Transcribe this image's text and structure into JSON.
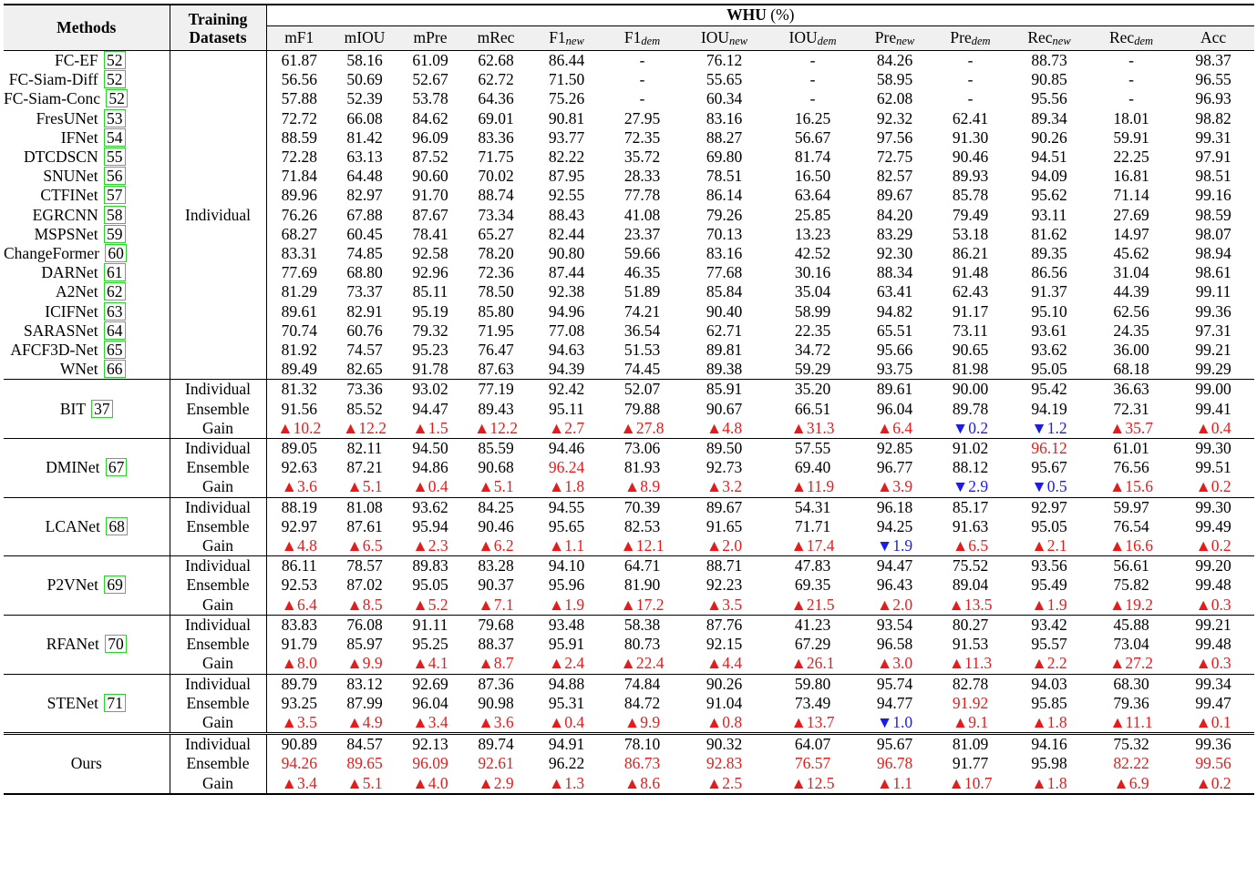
{
  "header": {
    "methods_label": "Methods",
    "training_label": "Training Datasets",
    "dataset_label": "WHU (%)",
    "columns": [
      {
        "base": "mF1",
        "sub": ""
      },
      {
        "base": "mIOU",
        "sub": ""
      },
      {
        "base": "mPre",
        "sub": ""
      },
      {
        "base": "mRec",
        "sub": ""
      },
      {
        "base": "F1",
        "sub": "new"
      },
      {
        "base": "F1",
        "sub": "dem"
      },
      {
        "base": "IOU",
        "sub": "new"
      },
      {
        "base": "IOU",
        "sub": "dem"
      },
      {
        "base": "Pre",
        "sub": "new"
      },
      {
        "base": "Pre",
        "sub": "dem"
      },
      {
        "base": "Rec",
        "sub": "new"
      },
      {
        "base": "Rec",
        "sub": "dem"
      },
      {
        "base": "Acc",
        "sub": ""
      }
    ]
  },
  "individual_section": {
    "dataset_label": "Individual",
    "rows": [
      {
        "method": "FC-EF",
        "ref": "52",
        "values": [
          "61.87",
          "58.16",
          "61.09",
          "62.68",
          "86.44",
          "-",
          "76.12",
          "-",
          "84.26",
          "-",
          "88.73",
          "-",
          "98.37"
        ]
      },
      {
        "method": "FC-Siam-Diff",
        "ref": "52",
        "values": [
          "56.56",
          "50.69",
          "52.67",
          "62.72",
          "71.50",
          "-",
          "55.65",
          "-",
          "58.95",
          "-",
          "90.85",
          "-",
          "96.55"
        ]
      },
      {
        "method": "FC-Siam-Conc",
        "ref": "52",
        "values": [
          "57.88",
          "52.39",
          "53.78",
          "64.36",
          "75.26",
          "-",
          "60.34",
          "-",
          "62.08",
          "-",
          "95.56",
          "-",
          "96.93"
        ]
      },
      {
        "method": "FresUNet",
        "ref": "53",
        "values": [
          "72.72",
          "66.08",
          "84.62",
          "69.01",
          "90.81",
          "27.95",
          "83.16",
          "16.25",
          "92.32",
          "62.41",
          "89.34",
          "18.01",
          "98.82"
        ]
      },
      {
        "method": "IFNet",
        "ref": "54",
        "values": [
          "88.59",
          "81.42",
          "96.09",
          "83.36",
          "93.77",
          "72.35",
          "88.27",
          "56.67",
          "97.56",
          "91.30",
          "90.26",
          "59.91",
          "99.31"
        ]
      },
      {
        "method": "DTCDSCN",
        "ref": "55",
        "values": [
          "72.28",
          "63.13",
          "87.52",
          "71.75",
          "82.22",
          "35.72",
          "69.80",
          "81.74",
          "72.75",
          "90.46",
          "94.51",
          "22.25",
          "97.91"
        ]
      },
      {
        "method": "SNUNet",
        "ref": "56",
        "values": [
          "71.84",
          "64.48",
          "90.60",
          "70.02",
          "87.95",
          "28.33",
          "78.51",
          "16.50",
          "82.57",
          "89.93",
          "94.09",
          "16.81",
          "98.51"
        ]
      },
      {
        "method": "CTFINet",
        "ref": "57",
        "values": [
          "89.96",
          "82.97",
          "91.70",
          "88.74",
          "92.55",
          "77.78",
          "86.14",
          "63.64",
          "89.67",
          "85.78",
          "95.62",
          "71.14",
          "99.16"
        ]
      },
      {
        "method": "EGRCNN",
        "ref": "58",
        "values": [
          "76.26",
          "67.88",
          "87.67",
          "73.34",
          "88.43",
          "41.08",
          "79.26",
          "25.85",
          "84.20",
          "79.49",
          "93.11",
          "27.69",
          "98.59"
        ]
      },
      {
        "method": "MSPSNet",
        "ref": "59",
        "values": [
          "68.27",
          "60.45",
          "78.41",
          "65.27",
          "82.44",
          "23.37",
          "70.13",
          "13.23",
          "83.29",
          "53.18",
          "81.62",
          "14.97",
          "98.07"
        ]
      },
      {
        "method": "ChangeFormer",
        "ref": "60",
        "values": [
          "83.31",
          "74.85",
          "92.58",
          "78.20",
          "90.80",
          "59.66",
          "83.16",
          "42.52",
          "92.30",
          "86.21",
          "89.35",
          "45.62",
          "98.94"
        ]
      },
      {
        "method": "DARNet",
        "ref": "61",
        "values": [
          "77.69",
          "68.80",
          "92.96",
          "72.36",
          "87.44",
          "46.35",
          "77.68",
          "30.16",
          "88.34",
          "91.48",
          "86.56",
          "31.04",
          "98.61"
        ]
      },
      {
        "method": "A2Net",
        "ref": "62",
        "values": [
          "81.29",
          "73.37",
          "85.11",
          "78.50",
          "92.38",
          "51.89",
          "85.84",
          "35.04",
          "63.41",
          "62.43",
          "91.37",
          "44.39",
          "99.11"
        ]
      },
      {
        "method": "ICIFNet",
        "ref": "63",
        "values": [
          "89.61",
          "82.91",
          "95.19",
          "85.80",
          "94.96",
          "74.21",
          "90.40",
          "58.99",
          "94.82",
          "91.17",
          "95.10",
          "62.56",
          "99.36"
        ]
      },
      {
        "method": "SARASNet",
        "ref": "64",
        "values": [
          "70.74",
          "60.76",
          "79.32",
          "71.95",
          "77.08",
          "36.54",
          "62.71",
          "22.35",
          "65.51",
          "73.11",
          "93.61",
          "24.35",
          "97.31"
        ]
      },
      {
        "method": "AFCF3D-Net",
        "ref": "65",
        "values": [
          "81.92",
          "74.57",
          "95.23",
          "76.47",
          "94.63",
          "51.53",
          "89.81",
          "34.72",
          "95.66",
          "90.65",
          "93.62",
          "36.00",
          "99.21"
        ]
      },
      {
        "method": "WNet",
        "ref": "66",
        "values": [
          "89.49",
          "82.65",
          "91.78",
          "87.63",
          "94.39",
          "74.45",
          "89.38",
          "59.29",
          "93.75",
          "81.98",
          "95.05",
          "68.18",
          "99.29"
        ]
      }
    ]
  },
  "groups": [
    {
      "method": "BIT",
      "ref": "37",
      "individual": [
        "81.32",
        "73.36",
        "93.02",
        "77.19",
        "92.42",
        "52.07",
        "85.91",
        "35.20",
        "89.61",
        "90.00",
        "95.42",
        "36.63",
        "99.00"
      ],
      "ensemble": [
        "91.56",
        "85.52",
        "94.47",
        "89.43",
        "95.11",
        "79.88",
        "90.67",
        "66.51",
        "96.04",
        "89.78",
        "94.19",
        "72.31",
        "99.41"
      ],
      "gain": [
        "▲10.2",
        "▲12.2",
        "▲1.5",
        "▲12.2",
        "▲2.7",
        "▲27.8",
        "▲4.8",
        "▲31.3",
        "▲6.4",
        "▼0.2",
        "▼1.2",
        "▲35.7",
        "▲0.4"
      ]
    },
    {
      "method": "DMINet",
      "ref": "67",
      "individual": [
        "89.05",
        "82.11",
        "94.50",
        "85.59",
        "94.46",
        "73.06",
        "89.50",
        "57.55",
        "92.85",
        "91.02",
        "96.12",
        "61.01",
        "99.30"
      ],
      "ensemble": [
        "92.63",
        "87.21",
        "94.86",
        "90.68",
        "96.24",
        "81.93",
        "92.73",
        "69.40",
        "96.77",
        "88.12",
        "95.67",
        "76.56",
        "99.51"
      ],
      "gain": [
        "▲3.6",
        "▲5.1",
        "▲0.4",
        "▲5.1",
        "▲1.8",
        "▲8.9",
        "▲3.2",
        "▲11.9",
        "▲3.9",
        "▼2.9",
        "▼0.5",
        "▲15.6",
        "▲0.2"
      ]
    },
    {
      "method": "LCANet",
      "ref": "68",
      "individual": [
        "88.19",
        "81.08",
        "93.62",
        "84.25",
        "94.55",
        "70.39",
        "89.67",
        "54.31",
        "96.18",
        "85.17",
        "92.97",
        "59.97",
        "99.30"
      ],
      "ensemble": [
        "92.97",
        "87.61",
        "95.94",
        "90.46",
        "95.65",
        "82.53",
        "91.65",
        "71.71",
        "94.25",
        "91.63",
        "95.05",
        "76.54",
        "99.49"
      ],
      "gain": [
        "▲4.8",
        "▲6.5",
        "▲2.3",
        "▲6.2",
        "▲1.1",
        "▲12.1",
        "▲2.0",
        "▲17.4",
        "▼1.9",
        "▲6.5",
        "▲2.1",
        "▲16.6",
        "▲0.2"
      ]
    },
    {
      "method": "P2VNet",
      "ref": "69",
      "individual": [
        "86.11",
        "78.57",
        "89.83",
        "83.28",
        "94.10",
        "64.71",
        "88.71",
        "47.83",
        "94.47",
        "75.52",
        "93.56",
        "56.61",
        "99.20"
      ],
      "ensemble": [
        "92.53",
        "87.02",
        "95.05",
        "90.37",
        "95.96",
        "81.90",
        "92.23",
        "69.35",
        "96.43",
        "89.04",
        "95.49",
        "75.82",
        "99.48"
      ],
      "gain": [
        "▲6.4",
        "▲8.5",
        "▲5.2",
        "▲7.1",
        "▲1.9",
        "▲17.2",
        "▲3.5",
        "▲21.5",
        "▲2.0",
        "▲13.5",
        "▲1.9",
        "▲19.2",
        "▲0.3"
      ]
    },
    {
      "method": "RFANet",
      "ref": "70",
      "individual": [
        "83.83",
        "76.08",
        "91.11",
        "79.68",
        "93.48",
        "58.38",
        "87.76",
        "41.23",
        "93.54",
        "80.27",
        "93.42",
        "45.88",
        "99.21"
      ],
      "ensemble": [
        "91.79",
        "85.97",
        "95.25",
        "88.37",
        "95.91",
        "80.73",
        "92.15",
        "67.29",
        "96.58",
        "91.53",
        "95.57",
        "73.04",
        "99.48"
      ],
      "gain": [
        "▲8.0",
        "▲9.9",
        "▲4.1",
        "▲8.7",
        "▲2.4",
        "▲22.4",
        "▲4.4",
        "▲26.1",
        "▲3.0",
        "▲11.3",
        "▲2.2",
        "▲27.2",
        "▲0.3"
      ]
    },
    {
      "method": "STENet",
      "ref": "71",
      "individual": [
        "89.79",
        "83.12",
        "92.69",
        "87.36",
        "94.88",
        "74.84",
        "90.26",
        "59.80",
        "95.74",
        "82.78",
        "94.03",
        "68.30",
        "99.34"
      ],
      "ensemble": [
        "93.25",
        "87.99",
        "96.04",
        "90.98",
        "95.31",
        "84.72",
        "91.04",
        "73.49",
        "94.77",
        "91.92",
        "95.85",
        "79.36",
        "99.47"
      ],
      "gain": [
        "▲3.5",
        "▲4.9",
        "▲3.4",
        "▲3.6",
        "▲0.4",
        "▲9.9",
        "▲0.8",
        "▲13.7",
        "▼1.0",
        "▲9.1",
        "▲1.8",
        "▲11.1",
        "▲0.1"
      ]
    }
  ],
  "ours": {
    "method": "Ours",
    "individual": [
      "90.89",
      "84.57",
      "92.13",
      "89.74",
      "94.91",
      "78.10",
      "90.32",
      "64.07",
      "95.67",
      "81.09",
      "94.16",
      "75.32",
      "99.36"
    ],
    "ensemble": [
      "94.26",
      "89.65",
      "96.09",
      "92.61",
      "96.22",
      "86.73",
      "92.83",
      "76.57",
      "96.78",
      "91.77",
      "95.98",
      "82.22",
      "99.56"
    ],
    "gain": [
      "▲3.4",
      "▲5.1",
      "▲4.0",
      "▲2.9",
      "▲1.3",
      "▲8.6",
      "▲2.5",
      "▲12.5",
      "▲1.1",
      "▲10.7",
      "▲1.8",
      "▲6.9",
      "▲0.2"
    ]
  },
  "row_labels": {
    "individual": "Individual",
    "ensemble": "Ensemble",
    "gain": "Gain"
  },
  "colors": {
    "increase": "#e61c1c",
    "decrease": "#1c1ce6",
    "highlight": "#e61c1c",
    "ref_box": "#2bd42b",
    "header_bg": "#f0f0f0"
  },
  "highlights": [
    {
      "group": "DMINet",
      "row": "individual",
      "col": 10
    },
    {
      "group": "DMINet",
      "row": "ensemble",
      "col": 4
    },
    {
      "group": "STENet",
      "row": "ensemble",
      "col": 9
    },
    {
      "group": "Ours",
      "row": "ensemble",
      "col": 0
    },
    {
      "group": "Ours",
      "row": "ensemble",
      "col": 1
    },
    {
      "group": "Ours",
      "row": "ensemble",
      "col": 2
    },
    {
      "group": "Ours",
      "row": "ensemble",
      "col": 3
    },
    {
      "group": "Ours",
      "row": "ensemble",
      "col": 5
    },
    {
      "group": "Ours",
      "row": "ensemble",
      "col": 6
    },
    {
      "group": "Ours",
      "row": "ensemble",
      "col": 7
    },
    {
      "group": "Ours",
      "row": "ensemble",
      "col": 8
    },
    {
      "group": "Ours",
      "row": "ensemble",
      "col": 11
    },
    {
      "group": "Ours",
      "row": "ensemble",
      "col": 12
    }
  ]
}
